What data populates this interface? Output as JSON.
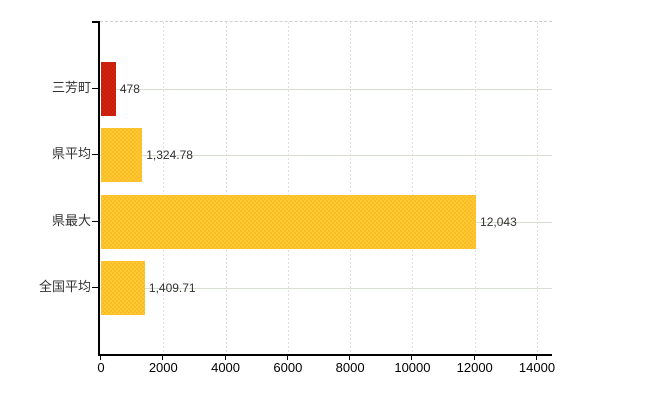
{
  "page": {
    "background": "#ffffff",
    "title": ""
  },
  "chart_data": {
    "type": "bar",
    "orientation": "horizontal",
    "title": "",
    "xlabel": "",
    "ylabel": "",
    "categories": [
      "三芳町",
      "県平均",
      "県最大",
      "全国平均"
    ],
    "values": [
      478,
      1324.78,
      12043,
      1409.71
    ],
    "value_labels": [
      "478",
      "1,324.78",
      "12,043",
      "1,409.71"
    ],
    "series_colors": [
      "#d32310",
      "#ffca2e",
      "#ffca2e",
      "#ffca2e"
    ],
    "series_dot_colors": [
      "#8f1405",
      "#ef8d1f",
      "#ef8d1f",
      "#ef8d1f"
    ],
    "xlim": [
      0,
      14000
    ],
    "xticks": [
      0,
      2000,
      4000,
      6000,
      8000,
      10000,
      12000,
      14000
    ],
    "xtick_labels": [
      "0",
      "2000",
      "4000",
      "6000",
      "8000",
      "10000",
      "12000",
      "14000"
    ],
    "grid": true,
    "legend": "none"
  },
  "colors": {
    "axis": "#000000",
    "h_gridline": "#d7dfd5",
    "v_gridline": "#e3dae3",
    "plot_top_border": "#d4cdd4",
    "category_text": "#333333",
    "value_text": "#333333",
    "tick_text": "#000000"
  }
}
